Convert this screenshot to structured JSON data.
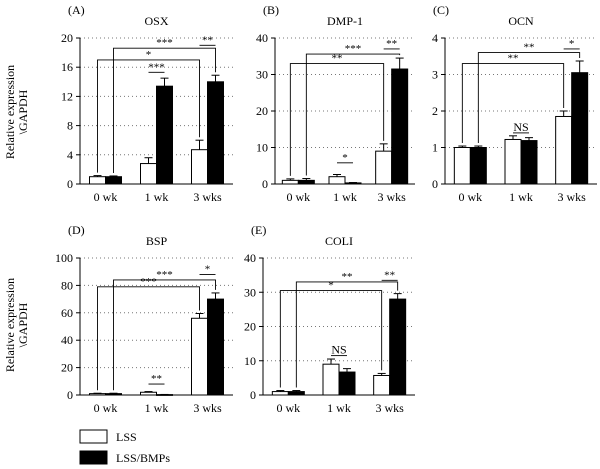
{
  "ylabel_lines": [
    "Relative expression",
    "\\GAPDH"
  ],
  "legend": [
    {
      "label": "LSS",
      "color": "#ffffff"
    },
    {
      "label": "LSS/BMPs",
      "color": "#000000"
    }
  ],
  "colors": {
    "LSS": "#ffffff",
    "LSS/BMPs": "#000000"
  },
  "chart_data": [
    {
      "type": "bar",
      "panel_letter": "(A)",
      "title": "OSX",
      "categories": [
        "0 wk",
        "1 wk",
        "3 wks"
      ],
      "ylim": [
        0,
        20
      ],
      "yticks": [
        0,
        4,
        8,
        12,
        16,
        20
      ],
      "grid": true,
      "series": [
        {
          "name": "LSS",
          "values": [
            1.0,
            2.8,
            4.7
          ],
          "errors": [
            0.15,
            0.8,
            1.3
          ]
        },
        {
          "name": "LSS/BMPs",
          "values": [
            1.0,
            13.4,
            14.0
          ],
          "errors": [
            0.1,
            1.1,
            0.9
          ]
        }
      ],
      "annotations": [
        {
          "text": "***",
          "type": "within",
          "group": 1,
          "y": 15.3
        },
        {
          "text": "**",
          "type": "within",
          "group": 2,
          "y": 19.0
        },
        {
          "text": "*",
          "type": "bracket",
          "from": [
            0,
            0
          ],
          "to": [
            2,
            0
          ],
          "y": 17.0
        },
        {
          "text": "***",
          "type": "bracket",
          "from": [
            0,
            1
          ],
          "to": [
            2,
            1
          ],
          "y": 18.6
        }
      ]
    },
    {
      "type": "bar",
      "panel_letter": "(B)",
      "title": "DMP-1",
      "categories": [
        "0 wk",
        "1 wk",
        "3 wks"
      ],
      "ylim": [
        0,
        40
      ],
      "yticks": [
        0,
        10,
        20,
        30,
        40
      ],
      "grid": true,
      "series": [
        {
          "name": "LSS",
          "values": [
            1.0,
            2.0,
            9.0
          ],
          "errors": [
            0.4,
            0.6,
            2.0
          ]
        },
        {
          "name": "LSS/BMPs",
          "values": [
            1.0,
            0.3,
            31.5
          ],
          "errors": [
            0.5,
            0.1,
            3.0
          ]
        }
      ],
      "annotations": [
        {
          "text": "*",
          "type": "within",
          "group": 1,
          "y": 5.8
        },
        {
          "text": "**",
          "type": "within",
          "group": 2,
          "y": 37.0
        },
        {
          "text": "**",
          "type": "bracket",
          "from": [
            0,
            0
          ],
          "to": [
            2,
            0
          ],
          "y": 33.0
        },
        {
          "text": "***",
          "type": "bracket",
          "from": [
            0,
            1
          ],
          "to": [
            2,
            1
          ],
          "y": 35.6
        }
      ]
    },
    {
      "type": "bar",
      "panel_letter": "(C)",
      "title": "OCN",
      "categories": [
        "0 wk",
        "1 wk",
        "3 wks"
      ],
      "ylim": [
        0,
        4
      ],
      "yticks": [
        0,
        1,
        2,
        3,
        4
      ],
      "grid": true,
      "series": [
        {
          "name": "LSS",
          "values": [
            1.0,
            1.22,
            1.85
          ],
          "errors": [
            0.04,
            0.1,
            0.15
          ]
        },
        {
          "name": "LSS/BMPs",
          "values": [
            1.0,
            1.19,
            3.05
          ],
          "errors": [
            0.04,
            0.08,
            0.32
          ]
        }
      ],
      "annotations": [
        {
          "text": "NS",
          "type": "within",
          "group": 1,
          "y": 1.4,
          "underline": true
        },
        {
          "text": "*",
          "type": "within",
          "group": 2,
          "y": 3.7
        },
        {
          "text": "**",
          "type": "bracket",
          "from": [
            0,
            0
          ],
          "to": [
            2,
            0
          ],
          "y": 3.3
        },
        {
          "text": "**",
          "type": "bracket",
          "from": [
            0,
            1
          ],
          "to": [
            2,
            1
          ],
          "y": 3.6
        }
      ]
    },
    {
      "type": "bar",
      "panel_letter": "(D)",
      "title": "BSP",
      "categories": [
        "0 wk",
        "1 wk",
        "3 wks"
      ],
      "ylim": [
        0,
        100
      ],
      "yticks": [
        0,
        20,
        40,
        60,
        80,
        100
      ],
      "grid": true,
      "series": [
        {
          "name": "LSS",
          "values": [
            1.0,
            2.0,
            56.0
          ],
          "errors": [
            0.3,
            0.5,
            3.5
          ]
        },
        {
          "name": "LSS/BMPs",
          "values": [
            1.0,
            0.3,
            70.0
          ],
          "errors": [
            0.3,
            0.1,
            4.5
          ]
        }
      ],
      "annotations": [
        {
          "text": "**",
          "type": "within",
          "group": 1,
          "y": 8.0
        },
        {
          "text": "*",
          "type": "within",
          "group": 2,
          "y": 88.0
        },
        {
          "text": "***",
          "type": "bracket",
          "from": [
            0,
            0
          ],
          "to": [
            2,
            0
          ],
          "y": 79.0
        },
        {
          "text": "***",
          "type": "bracket",
          "from": [
            0,
            1
          ],
          "to": [
            2,
            1
          ],
          "y": 84.0
        }
      ]
    },
    {
      "type": "bar",
      "panel_letter": "(E)",
      "title": "COLI",
      "categories": [
        "0 wk",
        "1 wk",
        "3 wks"
      ],
      "ylim": [
        0,
        40
      ],
      "yticks": [
        0,
        10,
        20,
        30,
        40
      ],
      "grid": true,
      "series": [
        {
          "name": "LSS",
          "values": [
            1.0,
            9.0,
            5.7
          ],
          "errors": [
            0.3,
            1.5,
            0.6
          ]
        },
        {
          "name": "LSS/BMPs",
          "values": [
            1.0,
            6.7,
            28.0
          ],
          "errors": [
            0.3,
            1.0,
            1.6
          ]
        }
      ],
      "annotations": [
        {
          "text": "NS",
          "type": "within",
          "group": 1,
          "y": 11.5,
          "underline": true
        },
        {
          "text": "**",
          "type": "within",
          "group": 2,
          "y": 33.5
        },
        {
          "text": "*",
          "type": "bracket",
          "from": [
            0,
            0
          ],
          "to": [
            2,
            0
          ],
          "y": 30.5
        },
        {
          "text": "**",
          "type": "bracket",
          "from": [
            0,
            1
          ],
          "to": [
            2,
            1
          ],
          "y": 33.0
        }
      ]
    }
  ]
}
